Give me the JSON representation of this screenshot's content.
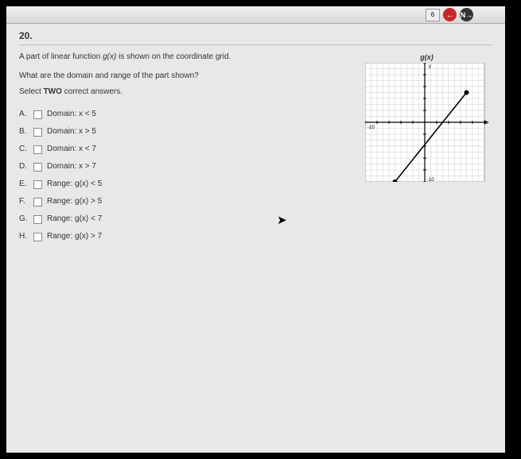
{
  "toolbar": {
    "btn1": "6",
    "red_icon": "←",
    "dark_icon": "N→"
  },
  "question": {
    "number": "20.",
    "prompt_a": "A part of linear function ",
    "prompt_fn": "g(x)",
    "prompt_b": " is shown on the coordinate grid.",
    "graph_label": "g(x)",
    "sub_q": "What are the domain and range of the part shown?",
    "instruction_a": "Select ",
    "instruction_b": "TWO",
    "instruction_c": " correct answers."
  },
  "answers": [
    {
      "letter": "A.",
      "text": "Domain: x < 5"
    },
    {
      "letter": "B.",
      "text": "Domain: x > 5"
    },
    {
      "letter": "C.",
      "text": "Domain: x < 7"
    },
    {
      "letter": "D.",
      "text": "Domain: x > 7"
    },
    {
      "letter": "E.",
      "text": "Range: g(x) < 5"
    },
    {
      "letter": "F.",
      "text": "Range: g(x) > 5"
    },
    {
      "letter": "G.",
      "text": "Range: g(x) < 7"
    },
    {
      "letter": "H.",
      "text": "Range: g(x) > 7"
    }
  ],
  "graph": {
    "size": 150,
    "grid_min": -10,
    "grid_max": 10,
    "line_start": {
      "x": -5,
      "y": -10
    },
    "line_end": {
      "x": 7,
      "y": 5
    },
    "grid_color": "#bfbfbf",
    "axis_color": "#000000",
    "line_color": "#000000",
    "bg": "#ffffff"
  }
}
